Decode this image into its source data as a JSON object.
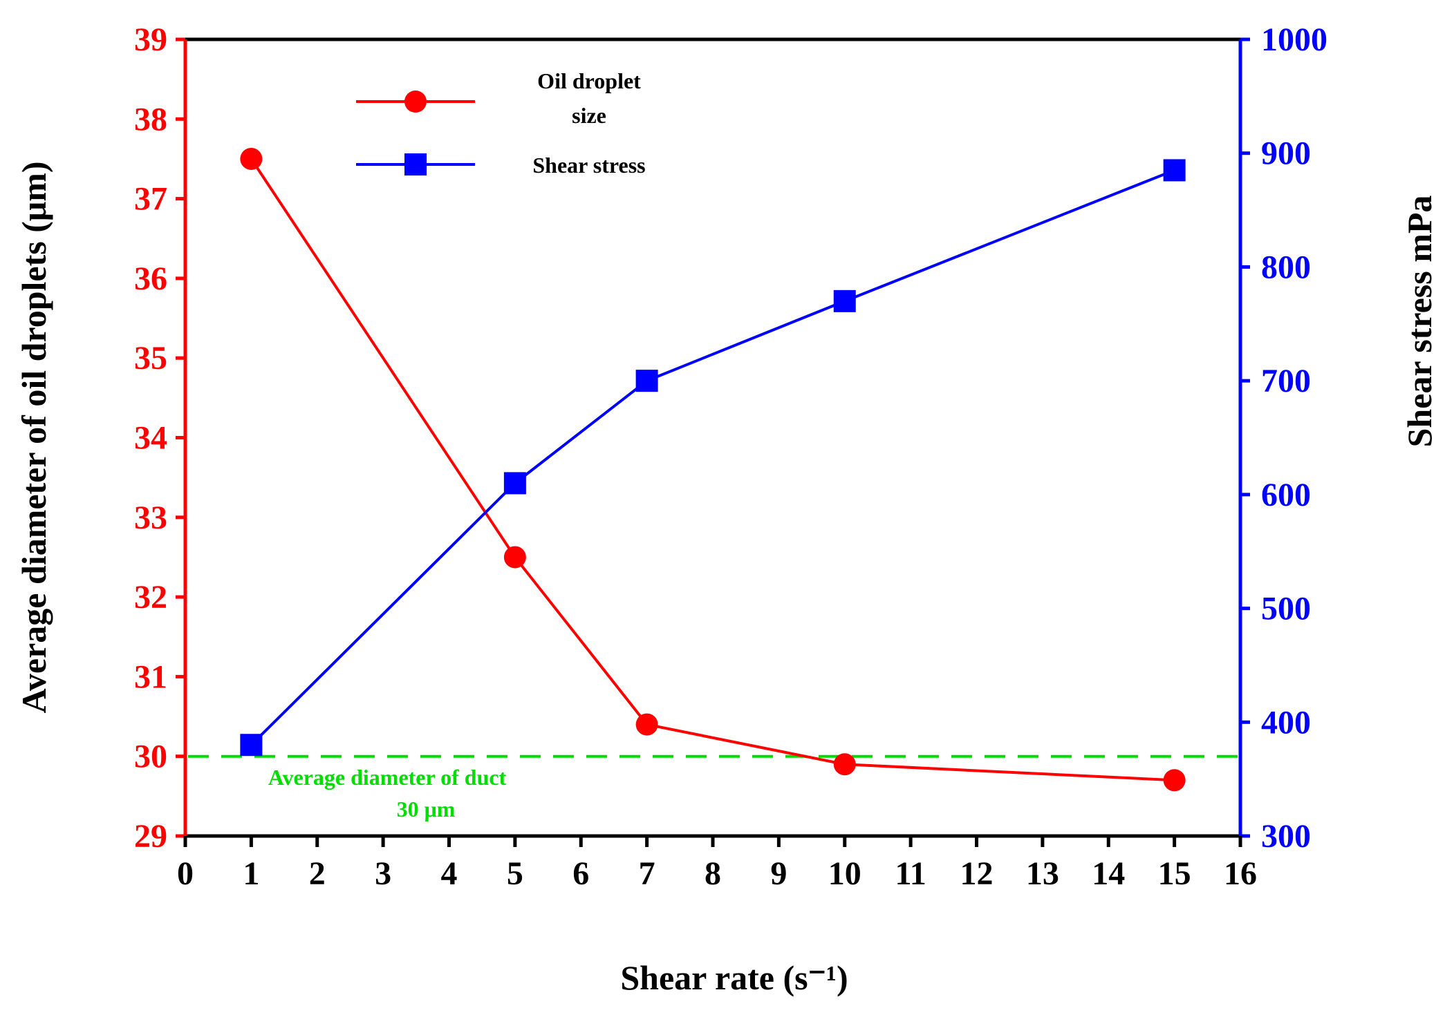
{
  "chart_data": {
    "type": "line",
    "x": [
      1,
      5,
      7,
      10,
      15
    ],
    "xlabel": "Shear rate (s⁻¹)",
    "xlim": [
      0,
      16
    ],
    "xticks": [
      "0",
      "1",
      "2",
      "3",
      "4",
      "5",
      "6",
      "7",
      "8",
      "9",
      "10",
      "11",
      "12",
      "13",
      "14",
      "15",
      "16"
    ],
    "ylabel_left": "Average diameter of oil droplets (μm)",
    "ylim_left": [
      29,
      39
    ],
    "yticks_left": [
      "29",
      "30",
      "31",
      "32",
      "33",
      "34",
      "35",
      "36",
      "37",
      "38",
      "39"
    ],
    "ylabel_right": "Shear stress mPa",
    "ylim_right": [
      300,
      1000
    ],
    "yticks_right": [
      "300",
      "400",
      "500",
      "600",
      "700",
      "800",
      "900",
      "1000"
    ],
    "series": [
      {
        "name": "Oil droplet size",
        "name_line1": "Oil droplet",
        "name_line2": "size",
        "axis": "left",
        "marker": "circle",
        "color": "#ff0000",
        "values": [
          37.5,
          32.5,
          30.4,
          29.9,
          29.7
        ]
      },
      {
        "name": "Shear stress",
        "axis": "right",
        "marker": "square",
        "color": "#0000ff",
        "values": [
          380,
          610,
          700,
          770,
          885
        ]
      }
    ],
    "reference_line": {
      "axis": "left",
      "value": 30,
      "color": "#00dd00",
      "style": "dashed",
      "label_line1": "Average diameter of duct",
      "label_line2": "30 μm"
    },
    "legend_position": "top-left",
    "grid": false
  }
}
